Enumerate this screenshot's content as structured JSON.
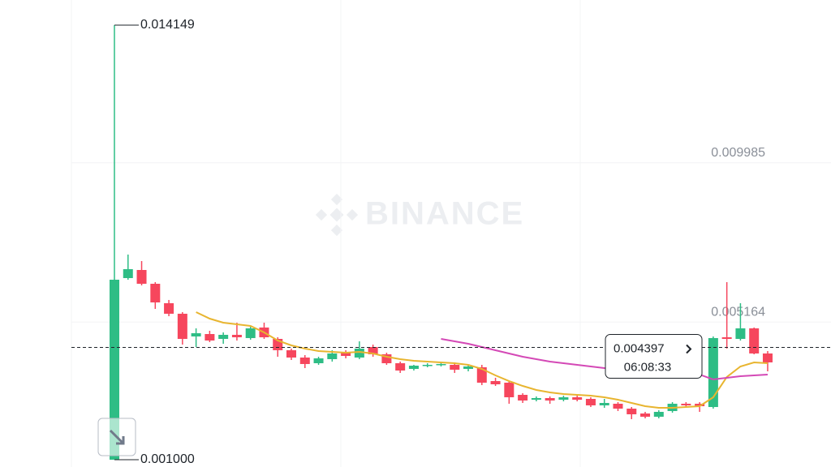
{
  "chart_data": {
    "type": "candlestick",
    "watermark": "BINANCE",
    "ylim": [
      0.000779,
      0.014909
    ],
    "yticks": [
      0.009985,
      0.005164
    ],
    "grid": true,
    "up_color": "#2ebd85",
    "down_color": "#f6465d",
    "open": [
      0.001,
      0.006495,
      0.00674,
      0.006323,
      0.005735,
      0.005416,
      0.004729,
      0.004802,
      0.004655,
      0.004778,
      0.00468,
      0.004999,
      0.004655,
      0.004312,
      0.004091,
      0.003919,
      0.004042,
      0.004238,
      0.004091,
      0.00441,
      0.004189,
      0.003919,
      0.003747,
      0.003845,
      0.00387,
      0.00387,
      0.003747,
      0.003796,
      0.003379,
      0.00333,
      0.002962,
      0.002815,
      0.002864,
      0.002815,
      0.002889,
      0.00284,
      0.002644,
      0.002693,
      0.002545,
      0.002398,
      0.0023,
      0.002472,
      0.002693,
      0.002693,
      0.002594,
      0.004704,
      0.004655,
      0.004974,
      0.004214
    ],
    "high": [
      0.014149,
      0.007207,
      0.00701,
      0.006372,
      0.005833,
      0.005465,
      0.004974,
      0.0049,
      0.004851,
      0.005146,
      0.005023,
      0.005146,
      0.004704,
      0.004361,
      0.004165,
      0.004115,
      0.004312,
      0.004312,
      0.004581,
      0.004483,
      0.004238,
      0.003968,
      0.00387,
      0.003919,
      0.003944,
      0.003944,
      0.00387,
      0.00387,
      0.003478,
      0.003379,
      0.003011,
      0.002913,
      0.002913,
      0.002938,
      0.002938,
      0.002889,
      0.00284,
      0.002742,
      0.002594,
      0.002447,
      0.002496,
      0.002742,
      0.002742,
      0.002742,
      0.004729,
      0.006372,
      0.005735,
      0.004999,
      0.004287
    ],
    "low": [
      0.001,
      0.006446,
      0.006274,
      0.005563,
      0.005342,
      0.004483,
      0.00441,
      0.004557,
      0.004508,
      0.004606,
      0.004631,
      0.004655,
      0.004115,
      0.004017,
      0.003772,
      0.00387,
      0.003968,
      0.004066,
      0.004042,
      0.004115,
      0.00387,
      0.003625,
      0.003698,
      0.003796,
      0.003821,
      0.003625,
      0.003674,
      0.003257,
      0.003232,
      0.002693,
      0.002717,
      0.002766,
      0.002693,
      0.002766,
      0.002766,
      0.002594,
      0.00257,
      0.002472,
      0.002227,
      0.002251,
      0.002251,
      0.002423,
      0.002594,
      0.002447,
      0.002545,
      0.004361,
      0.004606,
      0.004189,
      0.003674
    ],
    "close": [
      0.006446,
      0.006765,
      0.006323,
      0.005759,
      0.005416,
      0.004655,
      0.004827,
      0.004606,
      0.004778,
      0.004704,
      0.004974,
      0.004704,
      0.004312,
      0.004091,
      0.003895,
      0.004066,
      0.004214,
      0.00414,
      0.004361,
      0.004189,
      0.003919,
      0.003698,
      0.003845,
      0.00387,
      0.003895,
      0.003723,
      0.003821,
      0.00333,
      0.003281,
      0.002889,
      0.002791,
      0.002864,
      0.002791,
      0.002889,
      0.002815,
      0.002644,
      0.002717,
      0.002545,
      0.002374,
      0.0023,
      0.002447,
      0.002693,
      0.002644,
      0.002619,
      0.00468,
      0.004655,
      0.004974,
      0.004214,
      0.003944
    ],
    "moving_averages": [
      {
        "color": "#e8b530",
        "values": [
          null,
          null,
          null,
          null,
          null,
          null,
          0.005465,
          0.005268,
          0.005146,
          0.005097,
          0.005047,
          0.004851,
          0.004606,
          0.004459,
          0.004361,
          0.004287,
          0.004262,
          0.004238,
          0.004262,
          0.004214,
          0.004115,
          0.004042,
          0.003993,
          0.003968,
          0.003944,
          0.003919,
          0.00387,
          0.003747,
          0.003551,
          0.003379,
          0.003232,
          0.00311,
          0.003036,
          0.002987,
          0.002962,
          0.002938,
          0.002889,
          0.002815,
          0.002717,
          0.002619,
          0.00257,
          0.00257,
          0.002594,
          0.002619,
          0.002889,
          0.003502,
          0.003821,
          0.003944,
          0.003919
        ]
      },
      {
        "color": "#d449b6",
        "values": [
          null,
          null,
          null,
          null,
          null,
          null,
          null,
          null,
          null,
          null,
          null,
          null,
          null,
          null,
          null,
          null,
          null,
          null,
          null,
          null,
          null,
          null,
          null,
          null,
          0.004655,
          0.004581,
          0.004508,
          0.00441,
          0.004312,
          0.004214,
          0.004115,
          0.004042,
          0.003968,
          0.003919,
          0.00387,
          0.003821,
          0.003772,
          0.003747,
          0.003723,
          0.003723,
          0.003723,
          0.003674,
          0.003625,
          0.003576,
          0.003428,
          0.003478,
          0.003527,
          0.003551,
          0.003576
        ]
      }
    ],
    "min_marker": {
      "value": 0.001,
      "label": "0.001000"
    },
    "last_price": 0.004397,
    "countdown": "06:08:33"
  }
}
